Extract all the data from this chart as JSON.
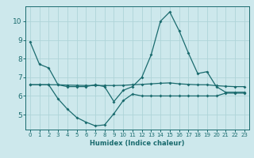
{
  "xlabel": "Humidex (Indice chaleur)",
  "bg_color": "#cde8ec",
  "grid_color": "#afd4d8",
  "line_color": "#1a6b6e",
  "xlim": [
    -0.5,
    23.5
  ],
  "ylim": [
    4.2,
    10.8
  ],
  "yticks": [
    5,
    6,
    7,
    8,
    9,
    10
  ],
  "xticks": [
    0,
    1,
    2,
    3,
    4,
    5,
    6,
    7,
    8,
    9,
    10,
    11,
    12,
    13,
    14,
    15,
    16,
    17,
    18,
    19,
    20,
    21,
    22,
    23
  ],
  "line1_x": [
    0,
    1,
    2,
    3,
    4,
    5,
    6,
    7,
    8,
    9,
    10,
    11,
    12,
    13,
    14,
    15,
    16,
    17,
    18,
    19,
    20,
    21,
    22,
    23
  ],
  "line1_y": [
    8.9,
    7.7,
    7.5,
    6.6,
    6.5,
    6.5,
    6.5,
    6.6,
    6.5,
    5.7,
    6.3,
    6.5,
    7.0,
    8.2,
    10.0,
    10.5,
    9.5,
    8.3,
    7.2,
    7.3,
    6.5,
    6.2,
    6.2,
    6.2
  ],
  "line2_x": [
    0,
    1,
    2,
    3,
    4,
    5,
    6,
    7,
    8,
    9,
    10,
    11,
    12,
    13,
    14,
    15,
    16,
    17,
    18,
    19,
    20,
    21,
    22,
    23
  ],
  "line2_y": [
    6.6,
    6.6,
    6.6,
    6.6,
    6.58,
    6.57,
    6.56,
    6.56,
    6.56,
    6.56,
    6.57,
    6.6,
    6.62,
    6.65,
    6.68,
    6.7,
    6.65,
    6.62,
    6.6,
    6.6,
    6.55,
    6.52,
    6.5,
    6.5
  ],
  "line3_x": [
    0,
    1,
    2,
    3,
    4,
    5,
    6,
    7,
    8,
    9,
    10,
    11,
    12,
    13,
    14,
    15,
    16,
    17,
    18,
    19,
    20,
    21,
    22,
    23
  ],
  "line3_y": [
    6.6,
    6.6,
    6.6,
    5.85,
    5.3,
    4.85,
    4.6,
    4.4,
    4.45,
    5.05,
    5.75,
    6.1,
    6.0,
    6.0,
    6.0,
    6.0,
    6.0,
    6.0,
    6.0,
    6.0,
    6.0,
    6.15,
    6.15,
    6.15
  ]
}
